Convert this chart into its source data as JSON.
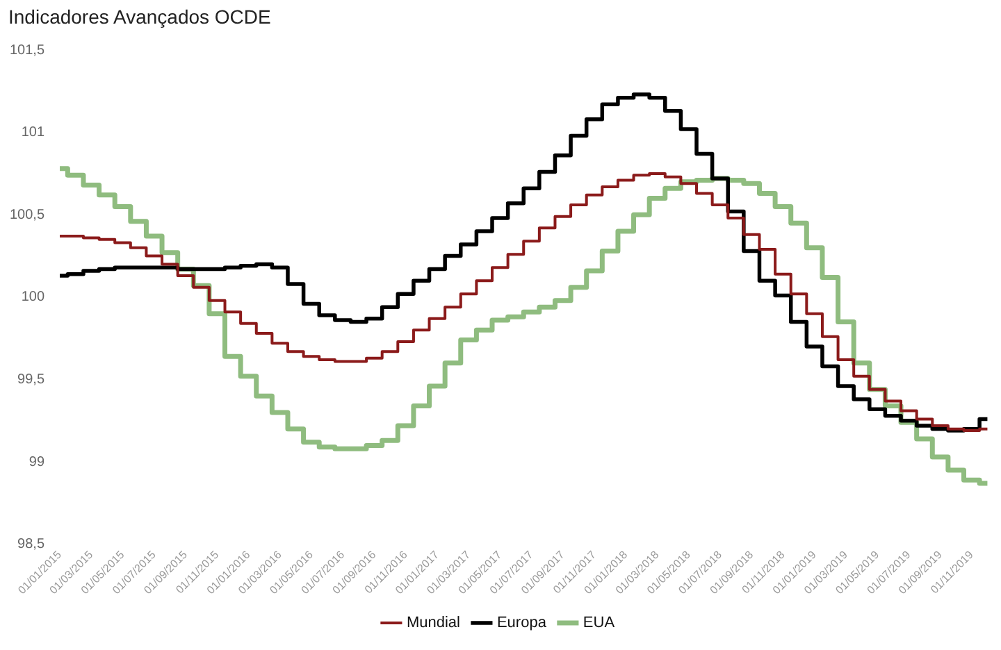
{
  "chart_data": {
    "type": "step",
    "title": "Indicadores Avançados OCDE",
    "categories": [
      "01/01/2015",
      null,
      "01/03/2015",
      null,
      "01/05/2015",
      null,
      "01/07/2015",
      null,
      "01/09/2015",
      null,
      "01/11/2015",
      null,
      "01/01/2016",
      null,
      "01/03/2016",
      null,
      "01/05/2016",
      null,
      "01/07/2016",
      null,
      "01/09/2016",
      null,
      "01/11/2016",
      null,
      "01/01/2017",
      null,
      "01/03/2017",
      null,
      "01/05/2017",
      null,
      "01/07/2017",
      null,
      "01/09/2017",
      null,
      "01/11/2017",
      null,
      "01/01/2018",
      null,
      "01/03/2018",
      null,
      "01/05/2018",
      null,
      "01/07/2018",
      null,
      "01/09/2018",
      null,
      "01/11/2018",
      null,
      "01/01/2019",
      null,
      "01/03/2019",
      null,
      "01/05/2019",
      null,
      "01/07/2019",
      null,
      "01/09/2019",
      null,
      "01/11/2019",
      null
    ],
    "series": [
      {
        "name": "Mundial",
        "color": "#8b1a1a",
        "values": [
          100.37,
          100.37,
          100.36,
          100.35,
          100.33,
          100.3,
          100.25,
          100.2,
          100.13,
          100.06,
          99.98,
          99.91,
          99.84,
          99.78,
          99.72,
          99.67,
          99.64,
          99.62,
          99.61,
          99.61,
          99.63,
          99.67,
          99.73,
          99.8,
          99.87,
          99.94,
          100.02,
          100.1,
          100.18,
          100.26,
          100.34,
          100.42,
          100.49,
          100.56,
          100.62,
          100.67,
          100.71,
          100.74,
          100.75,
          100.73,
          100.69,
          100.63,
          100.56,
          100.48,
          100.38,
          100.29,
          100.14,
          100.02,
          99.9,
          99.76,
          99.62,
          99.52,
          99.44,
          99.37,
          99.31,
          99.26,
          99.22,
          99.2,
          99.19,
          99.2
        ]
      },
      {
        "name": "Europa",
        "color": "#000000",
        "values": [
          100.13,
          100.14,
          100.16,
          100.17,
          100.18,
          100.18,
          100.18,
          100.18,
          100.17,
          100.17,
          100.17,
          100.18,
          100.19,
          100.2,
          100.18,
          100.08,
          99.96,
          99.89,
          99.86,
          99.85,
          99.87,
          99.94,
          100.02,
          100.1,
          100.17,
          100.25,
          100.32,
          100.4,
          100.48,
          100.57,
          100.66,
          100.76,
          100.86,
          100.98,
          101.08,
          101.17,
          101.21,
          101.23,
          101.21,
          101.13,
          101.02,
          100.87,
          100.72,
          100.52,
          100.28,
          100.1,
          100.01,
          99.85,
          99.7,
          99.58,
          99.46,
          99.38,
          99.32,
          99.28,
          99.25,
          99.22,
          99.2,
          99.19,
          99.2,
          99.26
        ]
      },
      {
        "name": "EUA",
        "color": "#8fbc7f",
        "values": [
          100.78,
          100.74,
          100.68,
          100.62,
          100.55,
          100.46,
          100.37,
          100.27,
          100.17,
          100.07,
          99.9,
          99.64,
          99.52,
          99.4,
          99.3,
          99.2,
          99.12,
          99.09,
          99.08,
          99.08,
          99.1,
          99.13,
          99.22,
          99.34,
          99.46,
          99.6,
          99.74,
          99.8,
          99.86,
          99.88,
          99.91,
          99.94,
          99.98,
          100.06,
          100.16,
          100.28,
          100.4,
          100.5,
          100.6,
          100.66,
          100.7,
          100.71,
          100.72,
          100.71,
          100.69,
          100.63,
          100.55,
          100.45,
          100.3,
          100.12,
          99.85,
          99.6,
          99.44,
          99.34,
          99.24,
          99.14,
          99.03,
          98.95,
          98.89,
          98.87
        ]
      }
    ],
    "ylim": [
      98.5,
      101.5
    ],
    "yticks": [
      {
        "value": 98.5,
        "label": "98,5"
      },
      99,
      {
        "value": 99.5,
        "label": "99,5"
      },
      100,
      {
        "value": 100.5,
        "label": "100,5"
      },
      101,
      {
        "value": 101.5,
        "label": "101,5"
      }
    ],
    "grid": false,
    "legend": "bottom",
    "marker": "none",
    "line_style": "solid"
  }
}
